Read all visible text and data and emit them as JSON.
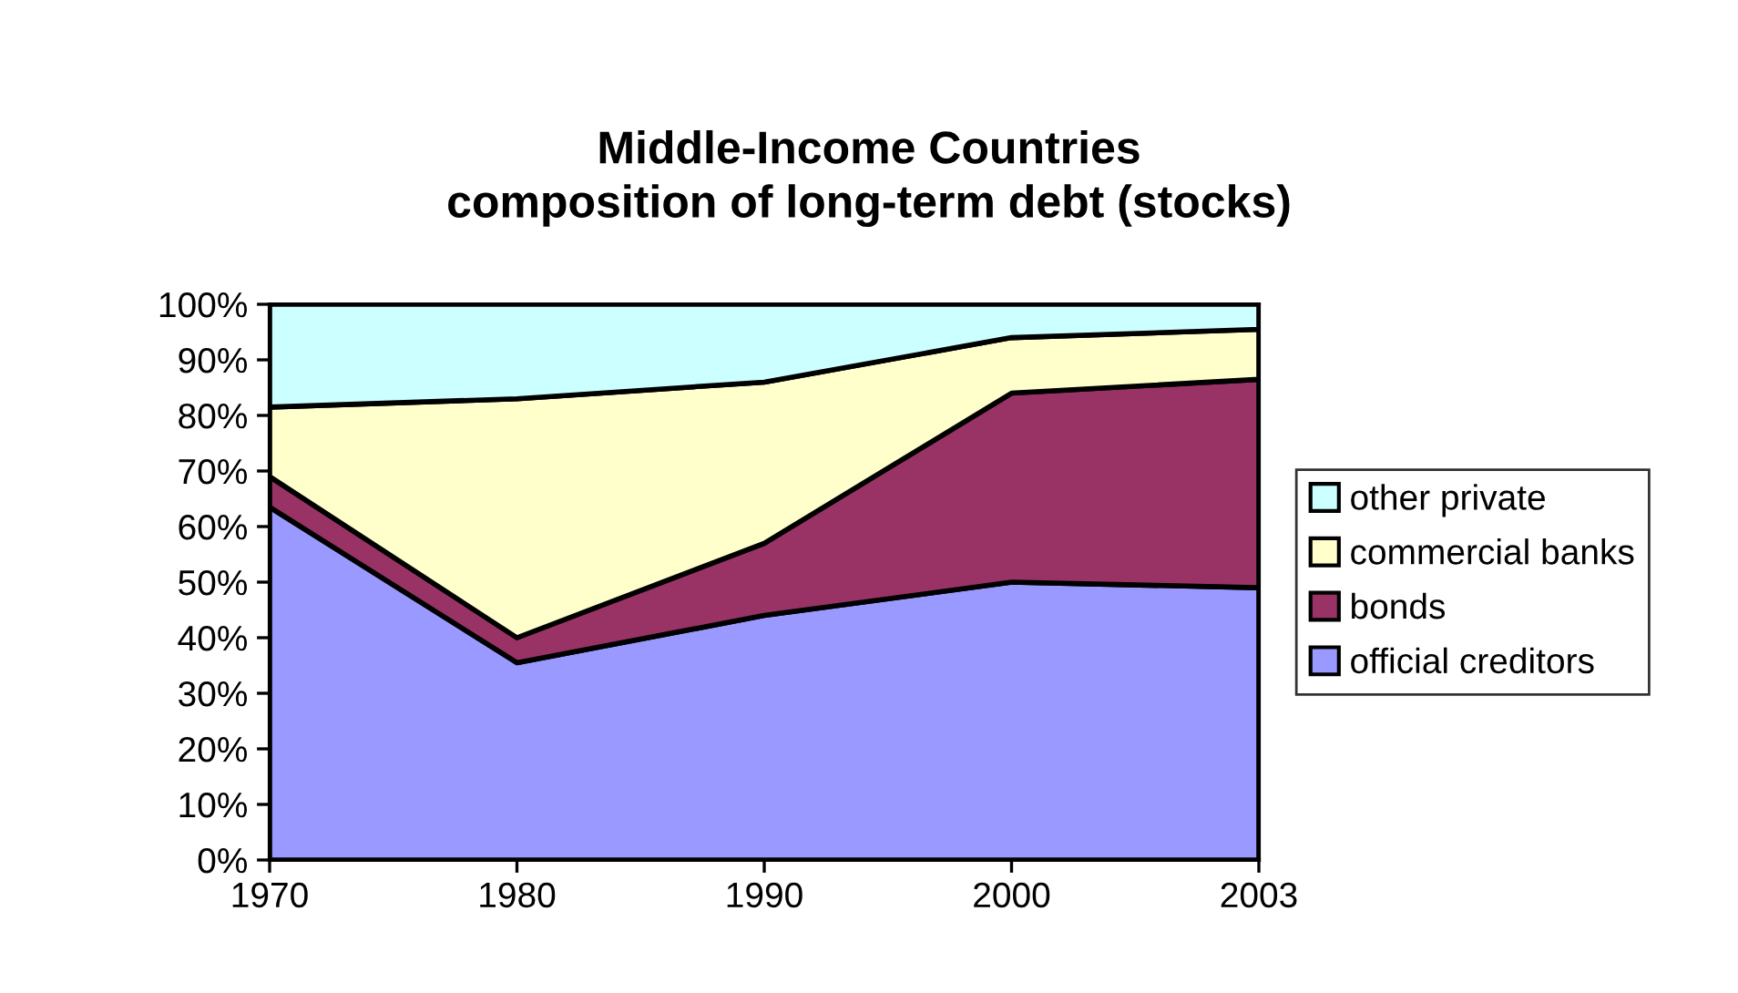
{
  "chart_data": {
    "type": "area",
    "stacked": true,
    "title": "Middle-Income Countries\ncomposition of long-term debt (stocks)",
    "categories": [
      "1970",
      "1980",
      "1990",
      "2000",
      "2003"
    ],
    "series": [
      {
        "name": "official creditors",
        "color": "#9999ff",
        "values": [
          63.5,
          35.5,
          44,
          50,
          49
        ]
      },
      {
        "name": "bonds",
        "color": "#993366",
        "values": [
          5.5,
          4.5,
          13,
          34,
          37.5
        ]
      },
      {
        "name": "commercial banks",
        "color": "#ffffcc",
        "values": [
          12.5,
          43,
          29,
          10,
          9
        ]
      },
      {
        "name": "other private",
        "color": "#ccffff",
        "values": [
          18.5,
          17,
          14,
          6,
          4.5
        ]
      }
    ],
    "ylim": [
      0,
      100
    ],
    "yticks": [
      {
        "value": 0,
        "label": "0%"
      },
      {
        "value": 10,
        "label": "10%"
      },
      {
        "value": 20,
        "label": "20%"
      },
      {
        "value": 30,
        "label": "30%"
      },
      {
        "value": 40,
        "label": "40%"
      },
      {
        "value": 50,
        "label": "50%"
      },
      {
        "value": 60,
        "label": "60%"
      },
      {
        "value": 70,
        "label": "70%"
      },
      {
        "value": 80,
        "label": "80%"
      },
      {
        "value": 90,
        "label": "90%"
      },
      {
        "value": 100,
        "label": "100%"
      }
    ],
    "grid": false,
    "legend": "right"
  }
}
